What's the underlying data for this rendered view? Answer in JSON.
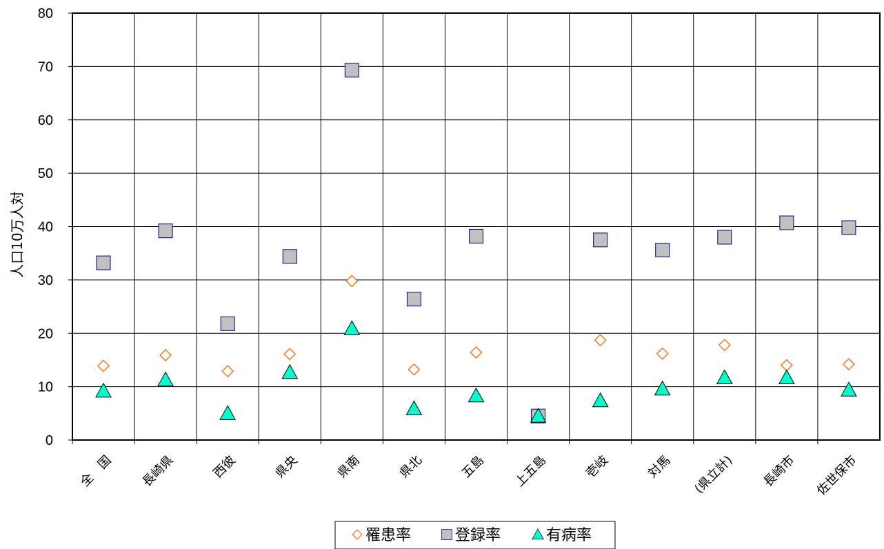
{
  "chart_data": {
    "type": "scatter",
    "title": "",
    "xlabel": "",
    "ylabel": "人口10万人対",
    "ylim": [
      0,
      80
    ],
    "yticks": [
      0,
      10,
      20,
      30,
      40,
      50,
      60,
      70,
      80
    ],
    "grid": true,
    "legend_position": "bottom",
    "categories": [
      "全　国",
      "長崎県",
      "西彼",
      "県央",
      "県南",
      "県北",
      "五島",
      "上五島",
      "壱岐",
      "対馬",
      "(県立計)",
      "長崎市",
      "佐世保市"
    ],
    "series": [
      {
        "name": "罹患率",
        "marker": "diamond",
        "color": "#ff6600",
        "values": [
          13.9,
          15.9,
          12.9,
          16.1,
          29.8,
          13.2,
          16.4,
          null,
          18.7,
          16.2,
          17.8,
          14.0,
          14.2
        ]
      },
      {
        "name": "登録率",
        "marker": "square",
        "color": "#c0c0c0",
        "values": [
          33.2,
          39.2,
          21.8,
          34.4,
          69.3,
          26.4,
          38.2,
          4.5,
          37.5,
          35.6,
          38.0,
          40.7,
          39.8
        ]
      },
      {
        "name": "有病率",
        "marker": "triangle",
        "color": "#00ffcc",
        "values": [
          9.2,
          11.3,
          5.0,
          12.7,
          20.9,
          5.9,
          8.3,
          4.5,
          7.4,
          9.6,
          11.7,
          11.7,
          9.4
        ]
      }
    ]
  }
}
